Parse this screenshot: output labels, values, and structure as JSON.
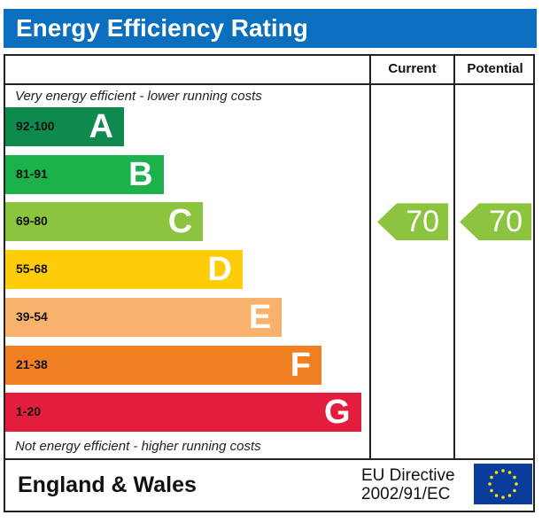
{
  "title": "Energy Efficiency Rating",
  "columns": {
    "current": "Current",
    "potential": "Potential"
  },
  "notes": {
    "top": "Very energy efficient - lower running costs",
    "bottom": "Not energy efficient - higher running costs"
  },
  "footer": {
    "region": "England & Wales",
    "directive_line1": "EU Directive",
    "directive_line2": "2002/91/EC",
    "flag_icon": "eu-flag-icon"
  },
  "chart_data": {
    "type": "bar",
    "categories": [
      "A",
      "B",
      "C",
      "D",
      "E",
      "F",
      "G"
    ],
    "bands": [
      {
        "letter": "A",
        "range": "92-100",
        "min": 92,
        "max": 100,
        "color": "#0e8a4e"
      },
      {
        "letter": "B",
        "range": "81-91",
        "min": 81,
        "max": 91,
        "color": "#1bb14b"
      },
      {
        "letter": "C",
        "range": "69-80",
        "min": 69,
        "max": 80,
        "color": "#8cc43f"
      },
      {
        "letter": "D",
        "range": "55-68",
        "min": 55,
        "max": 68,
        "color": "#ffcc0a"
      },
      {
        "letter": "E",
        "range": "39-54",
        "min": 39,
        "max": 54,
        "color": "#f8b26e"
      },
      {
        "letter": "F",
        "range": "21-38",
        "min": 21,
        "max": 38,
        "color": "#f07f22"
      },
      {
        "letter": "G",
        "range": "1-20",
        "min": 1,
        "max": 20,
        "color": "#e31d3c"
      }
    ],
    "current": {
      "value": 70,
      "band": "C",
      "label": "70",
      "color": "#8cc43f"
    },
    "potential": {
      "value": 70,
      "band": "C",
      "label": "70",
      "color": "#8cc43f"
    }
  }
}
